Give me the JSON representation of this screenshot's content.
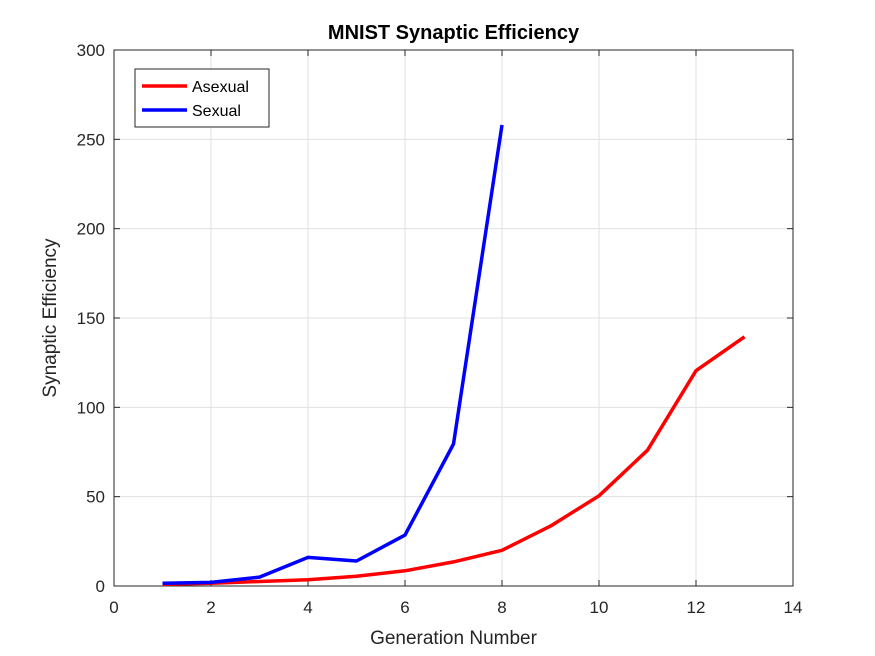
{
  "chart_data": {
    "type": "line",
    "title": "MNIST Synaptic Efficiency",
    "xlabel": "Generation Number",
    "ylabel": "Synaptic Efficiency",
    "xlim": [
      0,
      14
    ],
    "ylim": [
      0,
      300
    ],
    "xticks": [
      0,
      2,
      4,
      6,
      8,
      10,
      12,
      14
    ],
    "yticks": [
      0,
      50,
      100,
      150,
      200,
      250,
      300
    ],
    "grid": true,
    "legend_position": "top-left",
    "series": [
      {
        "name": "Asexual",
        "color": "#ff0000",
        "x": [
          1,
          2,
          3,
          4,
          5,
          6,
          7,
          8,
          9,
          10,
          11,
          12,
          13
        ],
        "y": [
          1,
          1.5,
          2.5,
          3.5,
          5.5,
          8.5,
          13.5,
          20,
          33.5,
          50.5,
          76,
          120.5,
          139.5
        ]
      },
      {
        "name": "Sexual",
        "color": "#0000ff",
        "x": [
          1,
          2,
          3,
          4,
          5,
          6,
          7,
          8
        ],
        "y": [
          1.5,
          2,
          5,
          16,
          14,
          28.5,
          79.5,
          258
        ]
      }
    ]
  }
}
